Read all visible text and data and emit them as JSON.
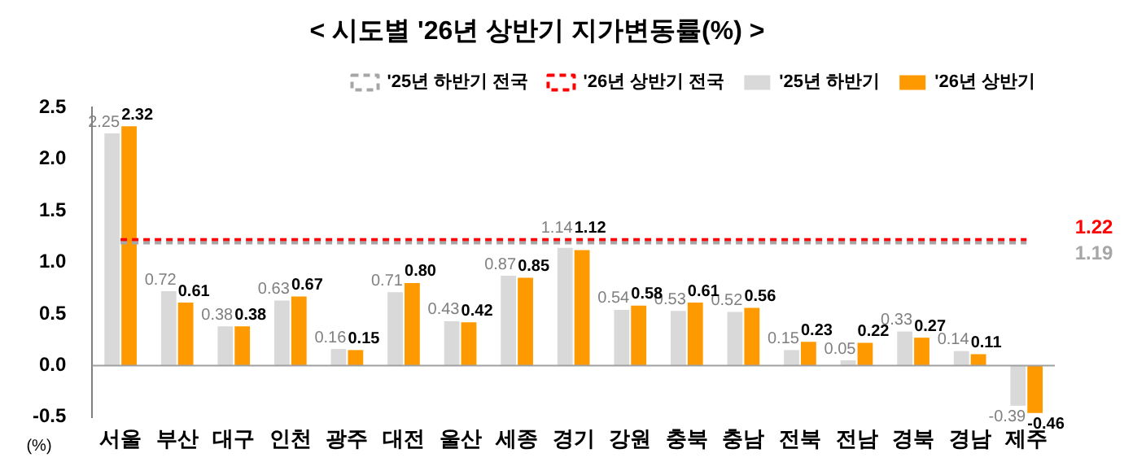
{
  "chart_data": {
    "type": "bar",
    "title": "< 시도별 '26년 상반기 지가변동률(%) >",
    "ylabel": "(%)",
    "categories": [
      "서울",
      "부산",
      "대구",
      "인천",
      "광주",
      "대전",
      "울산",
      "세종",
      "경기",
      "강원",
      "충북",
      "충남",
      "전북",
      "전남",
      "경북",
      "경남",
      "제주"
    ],
    "series": [
      {
        "name": "'25년 하반기",
        "color": "#d9d9d9",
        "values": [
          2.25,
          0.72,
          0.38,
          0.63,
          0.16,
          0.71,
          0.43,
          0.87,
          1.14,
          0.54,
          0.53,
          0.52,
          0.15,
          0.05,
          0.33,
          0.14,
          -0.39
        ],
        "value_labels": [
          "2.25",
          "0.72",
          "0.38",
          "0.63",
          "0.16",
          "0.71",
          "0.43",
          "0.87",
          "1.14",
          "0.54",
          "0.53",
          "0.52",
          "0.15",
          "0.05",
          "0.33",
          "0.14",
          "-0.39"
        ]
      },
      {
        "name": "'26년 상반기",
        "color": "#ff9900",
        "values": [
          2.32,
          0.61,
          0.38,
          0.67,
          0.15,
          0.8,
          0.42,
          0.85,
          1.12,
          0.58,
          0.61,
          0.56,
          0.23,
          0.22,
          0.27,
          0.11,
          -0.46
        ],
        "value_labels": [
          "2.32",
          "0.61",
          "0.38",
          "0.67",
          "0.15",
          "0.80",
          "0.42",
          "0.85",
          "1.12",
          "0.58",
          "0.61",
          "0.56",
          "0.23",
          "0.22",
          "0.27",
          "0.11",
          "-0.46"
        ]
      },
      {
        "name": "'25년 하반기 전국",
        "type": "line",
        "line_style": "dashed",
        "color": "#a6a6a6",
        "values": [
          1.19,
          1.19,
          1.19,
          1.19,
          1.19,
          1.19,
          1.19,
          1.19,
          1.19,
          1.19,
          1.19,
          1.19,
          1.19,
          1.19,
          1.19,
          1.19,
          1.19
        ]
      },
      {
        "name": "'26년 상반기 전국",
        "type": "line",
        "line_style": "dashed",
        "color": "#ff0000",
        "values": [
          1.22,
          1.22,
          1.22,
          1.22,
          1.22,
          1.22,
          1.22,
          1.22,
          1.22,
          1.22,
          1.22,
          1.22,
          1.22,
          1.22,
          1.22,
          1.22,
          1.22
        ]
      }
    ],
    "annotations": [
      "1.22",
      "1.19"
    ],
    "ylim": [
      -0.5,
      2.5
    ],
    "yticks": [
      {
        "value": -0.5,
        "label": "-0.5"
      },
      {
        "value": 0,
        "label": "0.0"
      },
      {
        "value": 0.5,
        "label": "0.5"
      },
      {
        "value": 1,
        "label": "1.0"
      },
      {
        "value": 1.5,
        "label": "1.5"
      },
      {
        "value": 2,
        "label": "2.0"
      },
      {
        "value": 2.5,
        "label": "2.5"
      }
    ],
    "grid": false,
    "legend": "top right",
    "marker": "none"
  }
}
